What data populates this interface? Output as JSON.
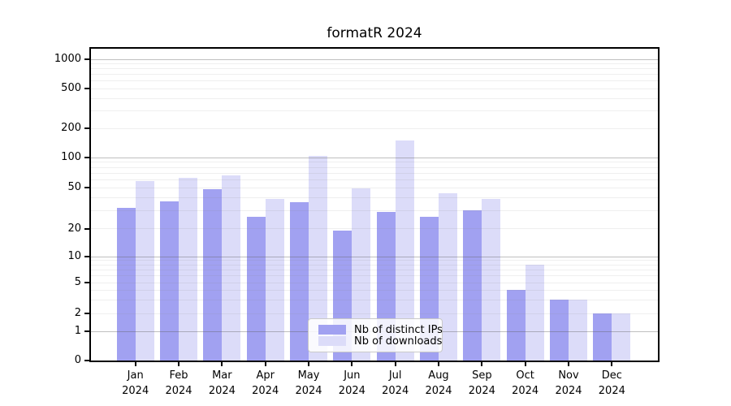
{
  "title": "formatR 2024",
  "y_axis": {
    "tick_labels": [
      "0",
      "1",
      "2",
      "5",
      "10",
      "20",
      "50",
      "100",
      "200",
      "500",
      "1000"
    ]
  },
  "x_axis": {
    "year": "2024",
    "months": [
      "Jan",
      "Feb",
      "Mar",
      "Apr",
      "May",
      "Jun",
      "Jul",
      "Aug",
      "Sep",
      "Oct",
      "Nov",
      "Dec"
    ]
  },
  "legend": {
    "items": [
      {
        "label": "Nb of distinct IPs",
        "color": "#a1a1f1"
      },
      {
        "label": "Nb of downloads",
        "color": "#dcdcf9"
      }
    ]
  },
  "chart_data": {
    "type": "bar",
    "title": "formatR 2024",
    "categories": [
      "Jan 2024",
      "Feb 2024",
      "Mar 2024",
      "Apr 2024",
      "May 2024",
      "Jun 2024",
      "Jul 2024",
      "Aug 2024",
      "Sep 2024",
      "Oct 2024",
      "Nov 2024",
      "Dec 2024"
    ],
    "series": [
      {
        "name": "Nb of distinct IPs",
        "color": "#a1a1f1",
        "values": [
          32,
          37,
          48,
          26,
          36,
          19,
          29,
          26,
          30,
          4,
          3,
          2
        ]
      },
      {
        "name": "Nb of downloads",
        "color": "#dcdcf9",
        "values": [
          58,
          63,
          66,
          39,
          105,
          49,
          152,
          44,
          39,
          8,
          3,
          2
        ]
      }
    ],
    "xlabel": "",
    "ylabel": "",
    "y_scale": "log",
    "y_ticks": [
      0,
      1,
      2,
      5,
      10,
      20,
      50,
      100,
      200,
      500,
      1000
    ],
    "ylim": [
      0,
      1250
    ],
    "grid": true,
    "legend_position": "lower center"
  }
}
